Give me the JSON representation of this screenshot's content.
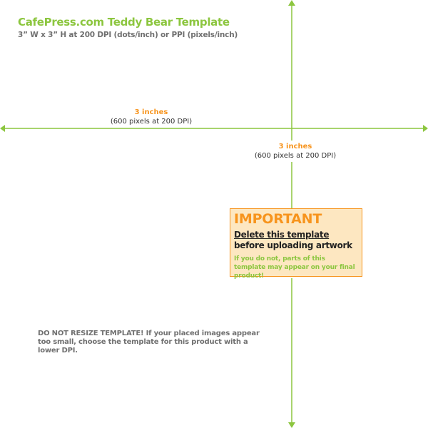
{
  "header": {
    "title": "CafePress.com Teddy Bear Template",
    "subtitle": "3” W x 3” H at 200 DPI (dots/inch) or PPI (pixels/inch)"
  },
  "dimensions": {
    "horizontal": {
      "inches": "3 inches",
      "pixels": "(600 pixels at 200 DPI)"
    },
    "vertical": {
      "inches": "3 inches",
      "pixels": "(600 pixels at 200 DPI)"
    }
  },
  "important": {
    "heading": "IMPORTANT",
    "main_underlined": "Delete this template",
    "main_rest": " before uploading artwork",
    "note": "If you do not, parts of this template may appear on your final product!"
  },
  "warning": {
    "text": "DO NOT RESIZE TEMPLATE! If your placed images appear too small, choose the template for this product with a lower DPI."
  },
  "colors": {
    "brand_green": "#8cc63f",
    "accent_orange": "#f7941d",
    "box_fill": "#fde7c1",
    "text_gray": "#707070"
  }
}
